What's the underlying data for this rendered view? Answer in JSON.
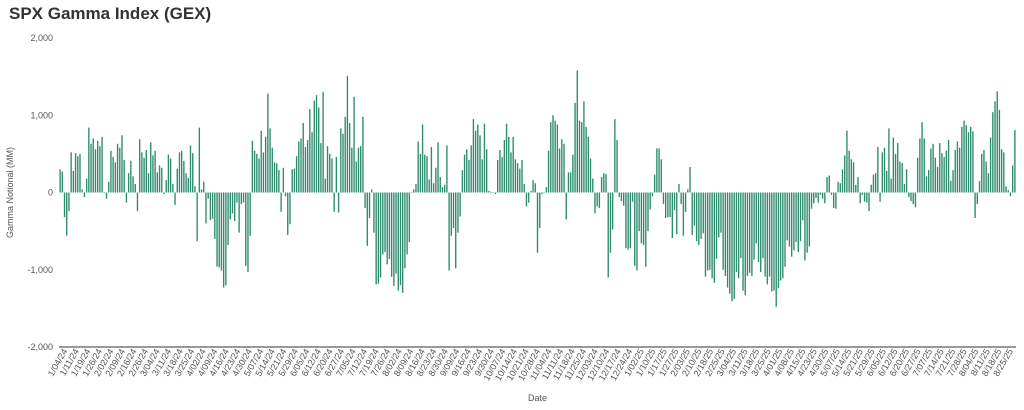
{
  "chart_data": {
    "type": "bar",
    "title": "SPX Gamma Index (GEX)",
    "xlabel": "Date",
    "ylabel": "Gamma Notional (MM)",
    "ylim": [
      -2000,
      2000
    ],
    "yticks": [
      "2,000",
      "1,000",
      "0",
      "-1,000",
      "-2,000"
    ],
    "ytick_values": [
      2000,
      1000,
      0,
      -1000,
      -2000
    ],
    "grid": false,
    "bar_color": "#2e8b6e",
    "xtick_labels": [
      "1/04/24",
      "1/11/24",
      "1/19/24",
      "1/26/24",
      "2/02/24",
      "2/09/24",
      "2/16/24",
      "2/26/24",
      "3/04/24",
      "3/11/24",
      "3/18/24",
      "3/25/24",
      "4/02/24",
      "4/09/24",
      "4/16/24",
      "4/23/24",
      "4/30/24",
      "5/07/24",
      "5/14/24",
      "5/21/24",
      "5/29/24",
      "6/05/24",
      "6/12/24",
      "6/20/24",
      "6/27/24",
      "7/05/24",
      "7/12/24",
      "7/19/24",
      "7/26/24",
      "8/02/24",
      "8/09/24",
      "8/16/24",
      "8/23/24",
      "8/30/24",
      "9/09/24",
      "9/16/24",
      "9/23/24",
      "9/30/24",
      "10/07/24",
      "10/14/24",
      "10/21/24",
      "10/28/24",
      "11/04/24",
      "11/11/24",
      "11/18/24",
      "11/25/24",
      "12/03/24",
      "12/10/24",
      "12/17/24",
      "12/24/24",
      "1/02/25",
      "1/10/25",
      "1/17/25",
      "1/27/25",
      "2/03/25",
      "2/10/25",
      "2/18/25",
      "2/25/25",
      "3/04/25",
      "3/11/25",
      "3/18/25",
      "3/25/25",
      "4/01/25",
      "4/08/25",
      "4/15/25",
      "4/23/25",
      "4/30/25",
      "5/07/25",
      "5/14/25",
      "5/21/25",
      "5/29/25",
      "6/05/25",
      "6/12/25",
      "6/20/25",
      "6/27/25",
      "7/07/25",
      "7/14/25",
      "7/21/25",
      "7/28/25",
      "8/04/25",
      "8/11/25",
      "8/18/25",
      "8/25/25"
    ],
    "values": [
      300,
      270,
      -320,
      -560,
      -240,
      520,
      280,
      510,
      470,
      500,
      40,
      -60,
      180,
      840,
      630,
      700,
      560,
      670,
      600,
      720,
      0,
      -80,
      140,
      540,
      460,
      390,
      630,
      580,
      740,
      420,
      -130,
      250,
      410,
      210,
      110,
      -240,
      690,
      520,
      450,
      550,
      250,
      650,
      480,
      540,
      260,
      350,
      320,
      -20,
      160,
      490,
      440,
      110,
      -160,
      310,
      520,
      540,
      410,
      250,
      190,
      610,
      510,
      80,
      -630,
      840,
      40,
      140,
      -400,
      -80,
      -360,
      -340,
      -600,
      -960,
      -970,
      -1010,
      -1230,
      -1200,
      -680,
      -350,
      -270,
      -370,
      -130,
      -520,
      -150,
      -130,
      -950,
      -1030,
      -560,
      670,
      540,
      500,
      440,
      800,
      520,
      720,
      1280,
      830,
      580,
      390,
      380,
      290,
      -250,
      320,
      -50,
      -550,
      -410,
      300,
      310,
      470,
      660,
      700,
      900,
      590,
      680,
      1080,
      780,
      1190,
      1260,
      1100,
      640,
      1300,
      180,
      600,
      500,
      440,
      -250,
      460,
      -260,
      830,
      760,
      980,
      1510,
      900,
      580,
      1240,
      400,
      580,
      600,
      980,
      -200,
      -690,
      -330,
      40,
      -520,
      -1190,
      -1180,
      -1100,
      -800,
      -770,
      -930,
      -860,
      -1090,
      -1210,
      -1050,
      -1270,
      -1200,
      -1300,
      -980,
      -800,
      -640,
      0,
      40,
      110,
      660,
      500,
      880,
      490,
      470,
      170,
      590,
      120,
      320,
      650,
      200,
      70,
      100,
      610,
      -1010,
      -560,
      -460,
      -980,
      -520,
      -310,
      290,
      490,
      560,
      420,
      610,
      950,
      800,
      880,
      740,
      430,
      890,
      560,
      20,
      10,
      0,
      -20,
      420,
      550,
      460,
      680,
      890,
      720,
      520,
      720,
      430,
      380,
      310,
      420,
      110,
      -180,
      -130,
      20,
      160,
      120,
      -780,
      -460,
      -20,
      0,
      70,
      540,
      910,
      1000,
      930,
      880,
      570,
      690,
      630,
      -350,
      260,
      260,
      490,
      1160,
      1580,
      930,
      910,
      1180,
      850,
      720,
      440,
      180,
      -270,
      -180,
      -200,
      200,
      250,
      240,
      -1100,
      -780,
      -480,
      950,
      680,
      -60,
      -110,
      -170,
      -720,
      -740,
      -720,
      -120,
      -950,
      -1010,
      -500,
      -660,
      -680,
      -960,
      -500,
      -220,
      -50,
      230,
      570,
      570,
      430,
      -150,
      -330,
      -320,
      -320,
      -590,
      -230,
      -540,
      110,
      -150,
      -560,
      -250,
      40,
      330,
      -550,
      -430,
      -630,
      -680,
      -600,
      -530,
      -1090,
      -1010,
      -1000,
      -1110,
      -1170,
      -860,
      -580,
      -520,
      -1000,
      -1080,
      -1230,
      -1310,
      -1410,
      -1380,
      -1030,
      -1110,
      -850,
      -1270,
      -1330,
      -1080,
      -1040,
      -1080,
      -870,
      -660,
      -900,
      -1030,
      -850,
      -1090,
      -1190,
      -1090,
      -1280,
      -1270,
      -1480,
      -1240,
      -1140,
      -1110,
      -960,
      -620,
      -700,
      -830,
      -750,
      -640,
      -770,
      -630,
      -360,
      -880,
      -780,
      -700,
      -210,
      -140,
      -70,
      -130,
      -30,
      -80,
      -140,
      200,
      220,
      -30,
      -200,
      -210,
      140,
      120,
      300,
      480,
      800,
      540,
      430,
      390,
      100,
      200,
      -140,
      -30,
      -120,
      -130,
      -240,
      100,
      230,
      250,
      590,
      -120,
      520,
      580,
      280,
      830,
      180,
      710,
      500,
      640,
      400,
      380,
      110,
      300,
      -60,
      -110,
      -150,
      -190,
      450,
      700,
      910,
      700,
      210,
      290,
      570,
      630,
      450,
      330,
      640,
      510,
      460,
      540,
      680,
      150,
      290,
      550,
      660,
      580,
      850,
      930,
      870,
      780,
      850,
      790,
      -330,
      -150,
      150,
      500,
      550,
      400,
      250,
      710,
      1040,
      1180,
      1310,
      1070,
      560,
      520,
      80,
      30,
      -50,
      350,
      810
    ]
  }
}
